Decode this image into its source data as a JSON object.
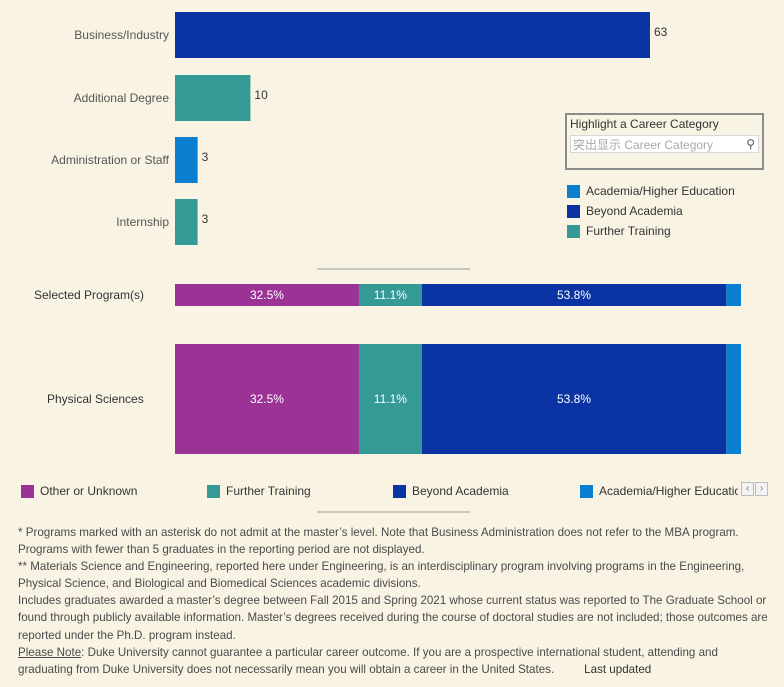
{
  "chart_data": [
    {
      "type": "bar",
      "orientation": "horizontal",
      "categories": [
        "Business/Industry",
        "Additional Degree",
        "Administration or Staff",
        "Internship"
      ],
      "values": [
        63,
        10,
        3,
        3
      ],
      "colors": [
        "#0a34a3",
        "#359a96",
        "#0b7fcf",
        "#359a96"
      ],
      "title": "",
      "xlabel": "",
      "ylabel": "",
      "xlim": [
        0,
        63
      ]
    },
    {
      "type": "bar",
      "orientation": "horizontal",
      "stacked": true,
      "normalized": true,
      "categories": [
        "Selected Program(s)",
        "Physical Sciences"
      ],
      "series": [
        {
          "name": "Other or Unknown",
          "color": "#9b3396",
          "values": [
            32.5,
            32.5
          ],
          "labels": [
            "32.5%",
            "32.5%"
          ]
        },
        {
          "name": "Further Training",
          "color": "#359a96",
          "values": [
            11.1,
            11.1
          ],
          "labels": [
            "11.1%",
            "11.1%"
          ]
        },
        {
          "name": "Beyond Academia",
          "color": "#0a34a3",
          "values": [
            53.8,
            53.8
          ],
          "labels": [
            "53.8%",
            "53.8%"
          ]
        },
        {
          "name": "Academia/Higher Education",
          "color": "#0b7fcf",
          "values": [
            2.6,
            2.6
          ],
          "labels": [
            "",
            ""
          ]
        }
      ],
      "legend": "bottom"
    }
  ],
  "highlight": {
    "title": "Highlight a Career Category",
    "placeholder": "突出显示 Career Category",
    "icon": "search-icon"
  },
  "legend_right": [
    {
      "label": "Academia/Higher Education",
      "color": "#0b7fcf"
    },
    {
      "label": "Beyond Academia",
      "color": "#0a34a3"
    },
    {
      "label": "Further Training",
      "color": "#359a96"
    }
  ],
  "legend_bottom": [
    {
      "label": "Other or Unknown",
      "color": "#9b3396"
    },
    {
      "label": "Further Training",
      "color": "#359a96"
    },
    {
      "label": "Beyond Academia",
      "color": "#0a34a3"
    },
    {
      "label": "Academia/Higher Education",
      "color": "#0b7fcf"
    }
  ],
  "notes": {
    "line1": "*  Programs marked with an asterisk do not admit at the master’s level.  Note that Business Administration does not refer to the MBA program.  Programs with fewer than 5 graduates in the reporting period are not displayed.",
    "line2": "** Materials Science and Engineering, reported here under Engineering, is an interdisciplinary program involving programs in the Engineering, Physical Science, and Biological and Biomedical Sciences academic divisions.",
    "line3": "Includes graduates awarded a master’s degree between Fall 2015 and Spring 2021 whose current status was reported to  The Graduate School or found through publicly available information.  Master’s degrees received during the course of doctoral studies are not included; those outcomes are reported under the Ph.D. program instead.",
    "please_note_label": "Please Note",
    "line4": ": Duke University cannot guarantee a particular career outcome. If you are a prospective international student, attending and graduating from Duke University does not necessarily mean you will obtain a career in the United States.",
    "last_updated": "Last updated"
  }
}
